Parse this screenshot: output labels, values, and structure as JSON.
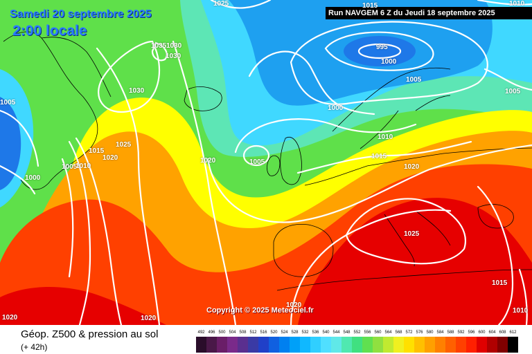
{
  "header": {
    "date": "Samedi 20 septembre 2025",
    "local_time": "2:00 locale",
    "run": "Run NAVGEM 6 Z du Jeudi 18 septembre 2025",
    "copyright": "Copyright © 2025 Meteociel.fr"
  },
  "footer": {
    "title": "Géop. Z500 & pression au sol",
    "subtitle": "(+ 42h)"
  },
  "legend": {
    "labels": [
      "492",
      "496",
      "500",
      "504",
      "508",
      "512",
      "516",
      "520",
      "524",
      "528",
      "532",
      "536",
      "540",
      "544",
      "548",
      "552",
      "556",
      "560",
      "564",
      "568",
      "572",
      "576",
      "580",
      "584",
      "588",
      "592",
      "596",
      "600",
      "604",
      "608",
      "612"
    ],
    "colors": [
      "#2a0d2a",
      "#4a1848",
      "#6a1e68",
      "#7a2a8a",
      "#5a2f8f",
      "#3a3aa5",
      "#2040c8",
      "#1060e0",
      "#0080f0",
      "#00a0f8",
      "#10b8ff",
      "#30cfff",
      "#50dfff",
      "#60e8e8",
      "#50e8b0",
      "#40e080",
      "#60e050",
      "#90e040",
      "#c0ea30",
      "#f0f020",
      "#ffe000",
      "#ffc000",
      "#ffa000",
      "#ff8000",
      "#ff6000",
      "#ff4000",
      "#ff2000",
      "#e00000",
      "#b00000",
      "#800000",
      "#000000"
    ]
  },
  "map_colors": {
    "green": "#5fe04a",
    "teal": "#5de6b5",
    "cyan": "#40d8ff",
    "blue": "#1ea0f0",
    "deep_blue": "#1e78e8",
    "yellow": "#ffff00",
    "orange": "#ffa200",
    "red": "#ff4000",
    "deep_red": "#e60000",
    "isobar": "#ffffff",
    "coast": "#000000"
  },
  "isobar_labels": [
    {
      "id": "1025-top",
      "text": "1025"
    },
    {
      "id": "1015-top",
      "text": "1015"
    },
    {
      "id": "1010-topright",
      "text": "1010"
    },
    {
      "id": "1035",
      "text": "1035"
    },
    {
      "id": "1030-a",
      "text": "1030"
    },
    {
      "id": "1030-b",
      "text": "1030"
    },
    {
      "id": "1030-c",
      "text": "1030"
    },
    {
      "id": "995",
      "text": "995"
    },
    {
      "id": "1000-north",
      "text": "1000"
    },
    {
      "id": "1005-norway",
      "text": "1005"
    },
    {
      "id": "1005-right",
      "text": "1005"
    },
    {
      "id": "1005-left",
      "text": "1005"
    },
    {
      "id": "1000-mid",
      "text": "1000"
    },
    {
      "id": "1010-scand",
      "text": "1010"
    },
    {
      "id": "1015-centre",
      "text": "1015"
    },
    {
      "id": "1020-europe",
      "text": "1020"
    },
    {
      "id": "1005-ireland",
      "text": "1005"
    },
    {
      "id": "1020-atlantic",
      "text": "1020"
    },
    {
      "id": "1015-west",
      "text": "1015"
    },
    {
      "id": "1025-west",
      "text": "1025"
    },
    {
      "id": "1020-west",
      "text": "1020"
    },
    {
      "id": "1005-west",
      "text": "1005"
    },
    {
      "id": "1010-west",
      "text": "1010"
    },
    {
      "id": "1000-west",
      "text": "1000"
    },
    {
      "id": "1025-italy",
      "text": "1025"
    },
    {
      "id": "1015-east",
      "text": "1015"
    },
    {
      "id": "1010-east",
      "text": "1010"
    },
    {
      "id": "1020-bottom-left",
      "text": "1020"
    },
    {
      "id": "1020-bottom-mid",
      "text": "1020"
    },
    {
      "id": "1020-bottom-centre",
      "text": "1020"
    }
  ]
}
